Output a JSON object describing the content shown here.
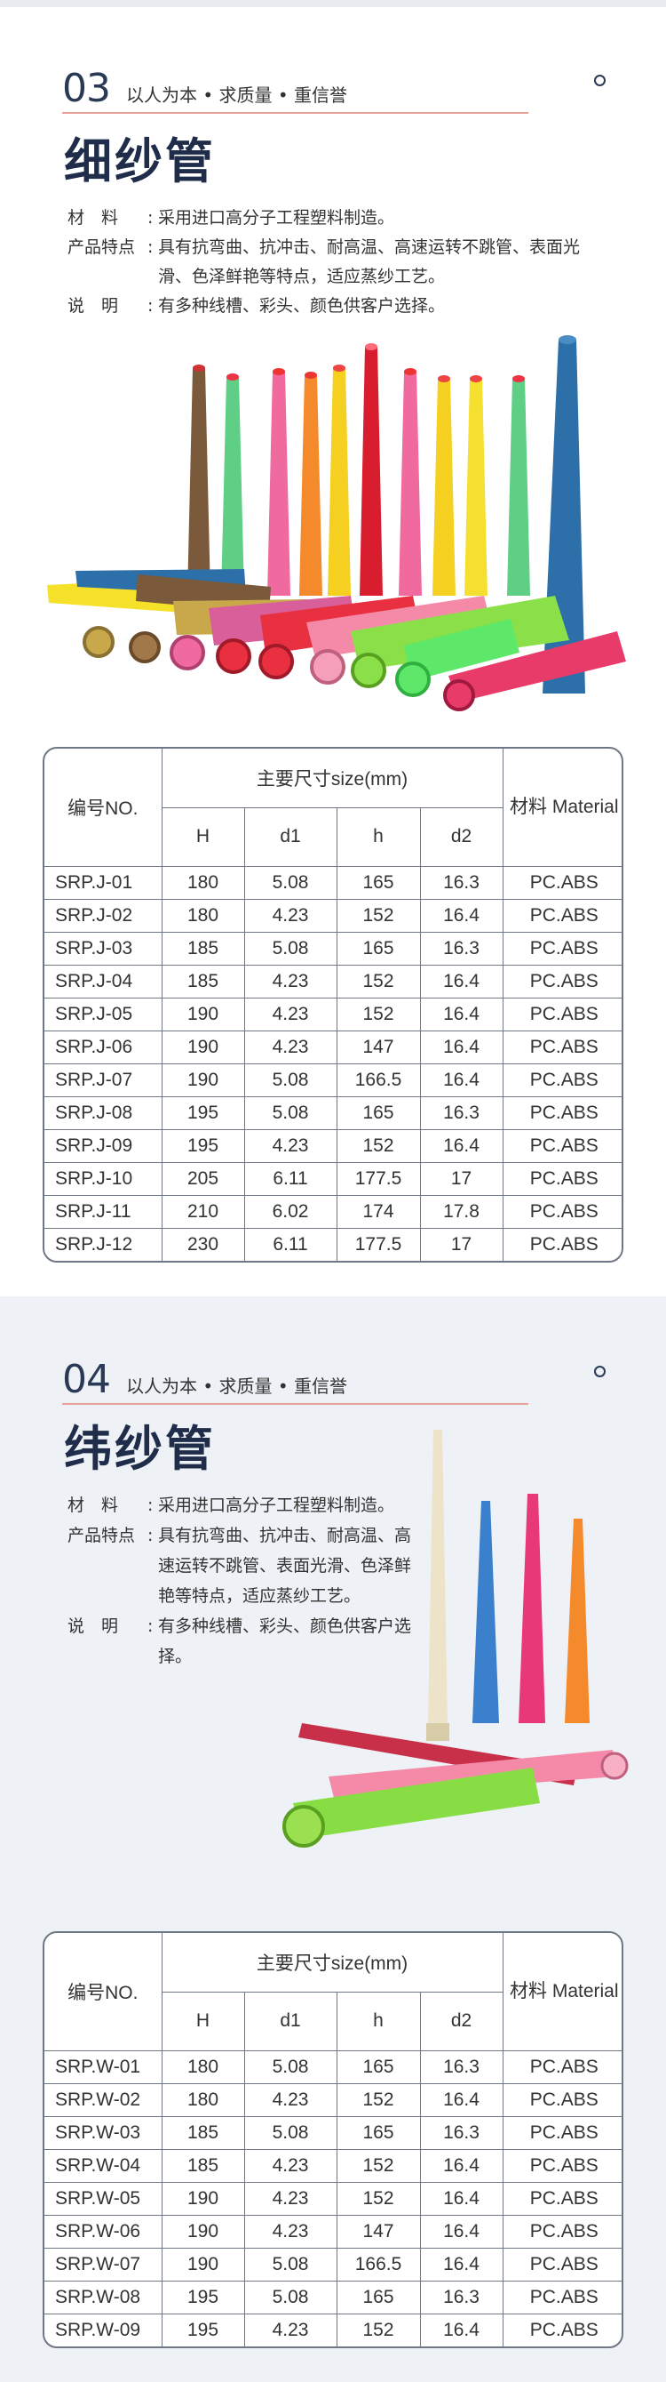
{
  "sections": [
    {
      "num": "03",
      "slogan": "以人为本 • 求质量 • 重信誉",
      "title": "细纱管",
      "desc": [
        {
          "label": "材　料",
          "text": "采用进口高分子工程塑料制造。"
        },
        {
          "label": "产品特点",
          "text": "具有抗弯曲、抗冲击、耐高温、高速运转不跳管、表面光滑、色泽鲜艳等特点，适应蒸纱工艺。"
        },
        {
          "label": "说　明",
          "text": "有多种线槽、彩头、颜色供客户选择。"
        }
      ],
      "image_alt": "colorful ring spinning bobbins",
      "table": {
        "h_no": "编号NO.",
        "h_size": "主要尺寸size(mm)",
        "h_mat": "材料 Material",
        "sub": [
          "H",
          "d1",
          "h",
          "d2"
        ],
        "rows": [
          [
            "SRP.J-01",
            "180",
            "5.08",
            "165",
            "16.3",
            "PC.ABS"
          ],
          [
            "SRP.J-02",
            "180",
            "4.23",
            "152",
            "16.4",
            "PC.ABS"
          ],
          [
            "SRP.J-03",
            "185",
            "5.08",
            "165",
            "16.3",
            "PC.ABS"
          ],
          [
            "SRP.J-04",
            "185",
            "4.23",
            "152",
            "16.4",
            "PC.ABS"
          ],
          [
            "SRP.J-05",
            "190",
            "4.23",
            "152",
            "16.4",
            "PC.ABS"
          ],
          [
            "SRP.J-06",
            "190",
            "4.23",
            "147",
            "16.4",
            "PC.ABS"
          ],
          [
            "SRP.J-07",
            "190",
            "5.08",
            "166.5",
            "16.4",
            "PC.ABS"
          ],
          [
            "SRP.J-08",
            "195",
            "5.08",
            "165",
            "16.3",
            "PC.ABS"
          ],
          [
            "SRP.J-09",
            "195",
            "4.23",
            "152",
            "16.4",
            "PC.ABS"
          ],
          [
            "SRP.J-10",
            "205",
            "6.11",
            "177.5",
            "17",
            "PC.ABS"
          ],
          [
            "SRP.J-11",
            "210",
            "6.02",
            "174",
            "17.8",
            "PC.ABS"
          ],
          [
            "SRP.J-12",
            "230",
            "6.11",
            "177.5",
            "17",
            "PC.ABS"
          ]
        ]
      }
    },
    {
      "num": "04",
      "slogan": "以人为本 • 求质量 • 重信誉",
      "title": "纬纱管",
      "desc": [
        {
          "label": "材　料",
          "text": "采用进口高分子工程塑料制造。"
        },
        {
          "label": "产品特点",
          "text": "具有抗弯曲、抗冲击、耐高温、高速运转不跳管、表面光滑、色泽鲜艳等特点，适应蒸纱工艺。"
        },
        {
          "label": "说　明",
          "text": "有多种线槽、彩头、颜色供客户选择。"
        }
      ],
      "image_alt": "colorful weft pirns",
      "table": {
        "h_no": "编号NO.",
        "h_size": "主要尺寸size(mm)",
        "h_mat": "材料 Material",
        "sub": [
          "H",
          "d1",
          "h",
          "d2"
        ],
        "rows": [
          [
            "SRP.W-01",
            "180",
            "5.08",
            "165",
            "16.3",
            "PC.ABS"
          ],
          [
            "SRP.W-02",
            "180",
            "4.23",
            "152",
            "16.4",
            "PC.ABS"
          ],
          [
            "SRP.W-03",
            "185",
            "5.08",
            "165",
            "16.3",
            "PC.ABS"
          ],
          [
            "SRP.W-04",
            "185",
            "4.23",
            "152",
            "16.4",
            "PC.ABS"
          ],
          [
            "SRP.W-05",
            "190",
            "4.23",
            "152",
            "16.4",
            "PC.ABS"
          ],
          [
            "SRP.W-06",
            "190",
            "4.23",
            "147",
            "16.4",
            "PC.ABS"
          ],
          [
            "SRP.W-07",
            "190",
            "5.08",
            "166.5",
            "16.4",
            "PC.ABS"
          ],
          [
            "SRP.W-08",
            "195",
            "5.08",
            "165",
            "16.3",
            "PC.ABS"
          ],
          [
            "SRP.W-09",
            "195",
            "4.23",
            "152",
            "16.4",
            "PC.ABS"
          ]
        ]
      }
    }
  ],
  "colors": {
    "navy": "#1f2d4a",
    "accent_line": "#e7a39a",
    "section2_bg": "#eef1f5",
    "table_border": "#6f7784"
  }
}
